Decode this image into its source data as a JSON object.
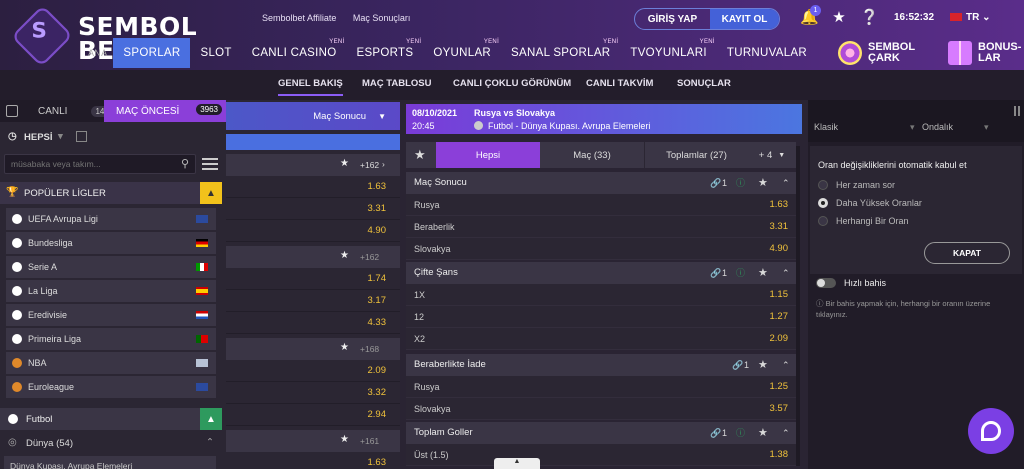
{
  "brand": {
    "line1": "SEMBOL",
    "line2": "BET"
  },
  "top_links": [
    "Sembolbet Affiliate",
    "Maç Sonuçları"
  ],
  "auth": {
    "login": "GİRİŞ YAP",
    "register": "KAYIT OL"
  },
  "notifications": {
    "count": "1"
  },
  "clock": "16:52:32",
  "language": "TR",
  "nav": {
    "home": "ANA",
    "items": [
      {
        "label": "SPORLAR",
        "yeni": ""
      },
      {
        "label": "SLOT",
        "yeni": ""
      },
      {
        "label": "CANLI CASINO",
        "yeni": "YENİ"
      },
      {
        "label": "ESPORTS",
        "yeni": "YENİ"
      },
      {
        "label": "OYUNLAR",
        "yeni": "YENİ"
      },
      {
        "label": "SANAL SPORLAR",
        "yeni": "YENİ"
      },
      {
        "label": "TVOYUNLARI",
        "yeni": "YENİ"
      },
      {
        "label": "TURNUVALAR",
        "yeni": ""
      }
    ],
    "promo1": {
      "l1": "SEMBOL",
      "l2": "ÇARK"
    },
    "promo2": {
      "l1": "BONUS-",
      "l2": "LAR"
    }
  },
  "subnav": [
    "GENEL BAKIŞ",
    "MAÇ TABLOSU",
    "CANLI ÇOKLU GÖRÜNÜM",
    "CANLI TAKVİM",
    "SONUÇLAR"
  ],
  "left": {
    "live_label": "CANLI",
    "live_count": "143",
    "pre_label": "MAÇ ÖNCESİ",
    "pre_count": "3963",
    "filter": "HEPSİ",
    "search_placeholder": "müsabaka veya takım...",
    "popular": "POPÜLER LİGLER",
    "leagues": [
      "UEFA Avrupa Ligi",
      "Bundesliga",
      "Serie A",
      "La Liga",
      "Eredivisie",
      "Primeira Liga",
      "NBA",
      "Euroleague"
    ],
    "sport": "Futbol",
    "region": "Dünya (54)",
    "competition": "Dünya Kupası. Avrupa Elemeleri"
  },
  "midleft": {
    "header": "Maç Sonucu",
    "groups": [
      {
        "more": "+162",
        "odds": [
          "1.63",
          "3.31",
          "4.90"
        ]
      },
      {
        "more": "+162",
        "odds": [
          "1.74",
          "3.17",
          "4.33"
        ]
      },
      {
        "more": "+168",
        "odds": [
          "2.09",
          "3.32",
          "2.94"
        ]
      },
      {
        "more": "+161",
        "odds": [
          "1.63"
        ]
      }
    ]
  },
  "match": {
    "date": "08/10/2021",
    "time": "20:45",
    "teams": "Rusya vs Slovakya",
    "competition": "Futbol - Dünya Kupası. Avrupa Elemeleri"
  },
  "market_tabs": {
    "all": "Hepsi",
    "match": "Maç (33)",
    "totals": "Toplamlar (27)",
    "more": "+ 4"
  },
  "markets": [
    {
      "title": "Maç Sonucu",
      "link": "1",
      "rows": [
        {
          "label": "Rusya",
          "odd": "1.63"
        },
        {
          "label": "Beraberlik",
          "odd": "3.31"
        },
        {
          "label": "Slovakya",
          "odd": "4.90"
        }
      ]
    },
    {
      "title": "Çifte Şans",
      "link": "1",
      "rows": [
        {
          "label": "1X",
          "odd": "1.15"
        },
        {
          "label": "12",
          "odd": "1.27"
        },
        {
          "label": "X2",
          "odd": "2.09"
        }
      ]
    },
    {
      "title": "Beraberlikte İade",
      "link": "1",
      "rows": [
        {
          "label": "Rusya",
          "odd": "1.25"
        },
        {
          "label": "Slovakya",
          "odd": "3.57"
        }
      ]
    },
    {
      "title": "Toplam Goller",
      "link": "1",
      "rows": [
        {
          "label": "Üst (1.5)",
          "odd": "1.38"
        }
      ]
    }
  ],
  "right": {
    "select1": "Klasik",
    "select2": "Ondalık",
    "odds_change_title": "Oran değişikliklerini otomatik kabul et",
    "options": [
      "Her zaman sor",
      "Daha Yüksek Oranlar",
      "Herhangi Bir Oran"
    ],
    "close_btn": "KAPAT",
    "quick_bet": "Hızlı bahis",
    "hint": "Bir bahis yapmak için, herhangi bir oranın üzerine tıklayınız."
  },
  "colors": {
    "accent": "#8b3fd9",
    "odds": "#f0c23b",
    "primary": "#4a6fe0"
  }
}
